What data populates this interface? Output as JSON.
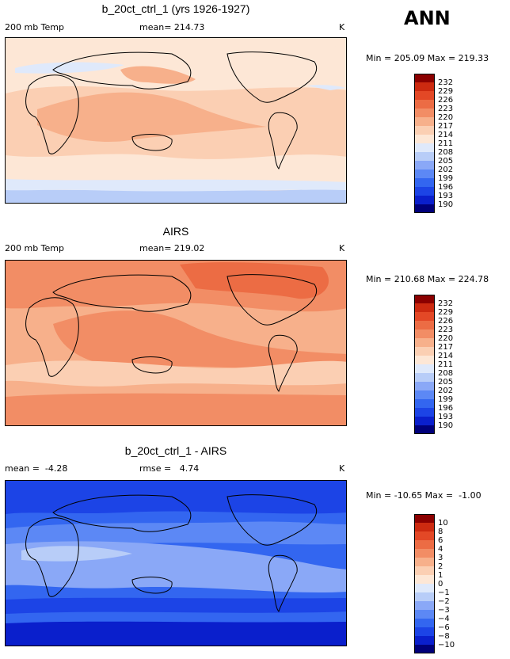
{
  "season": "ANN",
  "colors": {
    "temp": [
      "#00007a",
      "#0a1fcc",
      "#1c44e6",
      "#3366f0",
      "#5c88f5",
      "#8aa8f7",
      "#b8cdf8",
      "#dfe9fb",
      "#fde7d6",
      "#fbcfb3",
      "#f7b08b",
      "#f28d65",
      "#ec6c44",
      "#e34826",
      "#cc2a10",
      "#8b0000"
    ],
    "diff": [
      "#00007a",
      "#0a1fcc",
      "#1c44e6",
      "#3366f0",
      "#5c88f5",
      "#8aa8f7",
      "#b8cdf8",
      "#dfe9fb",
      "#fde7d6",
      "#fbcfb3",
      "#f7b08b",
      "#f28d65",
      "#ec6c44",
      "#e34826",
      "#cc2a10",
      "#8b0000"
    ]
  },
  "panels": [
    {
      "title": "b_20ct_ctrl_1 (yrs 1926-1927)",
      "left_label": "200 mb Temp",
      "center_label": "mean= 214.73",
      "unit": "K",
      "minmax": "Min = 205.09 Max = 219.33",
      "levels": [
        "232",
        "229",
        "226",
        "223",
        "220",
        "217",
        "214",
        "211",
        "208",
        "205",
        "202",
        "199",
        "196",
        "193",
        "190"
      ]
    },
    {
      "title": "AIRS",
      "left_label": "200 mb Temp",
      "center_label": "mean= 219.02",
      "unit": "K",
      "minmax": "Min = 210.68 Max = 224.78",
      "levels": [
        "232",
        "229",
        "226",
        "223",
        "220",
        "217",
        "214",
        "211",
        "208",
        "205",
        "202",
        "199",
        "196",
        "193",
        "190"
      ]
    },
    {
      "title": "b_20ct_ctrl_1 - AIRS",
      "left_label": "mean =  -4.28",
      "center_label": "rmse =   4.74",
      "unit": "K",
      "minmax": "Min = -10.65 Max =  -1.00",
      "levels": [
        "10",
        "8",
        "6",
        "4",
        "3",
        "2",
        "1",
        "0",
        "−1",
        "−2",
        "−3",
        "−4",
        "−6",
        "−8",
        "−10"
      ]
    }
  ],
  "chart_data": [
    {
      "type": "heatmap",
      "title": "b_20ct_ctrl_1 (yrs 1926-1927)",
      "variable": "200 mb Temp",
      "units": "K",
      "mean": 214.73,
      "min": 205.09,
      "max": 219.33,
      "contour_levels": [
        190,
        193,
        196,
        199,
        202,
        205,
        208,
        211,
        214,
        217,
        220,
        223,
        226,
        229,
        232
      ],
      "zonal_bands_K": {
        "south_polar": 207,
        "southern_midlat": 212,
        "tropics": 217,
        "northern_midlat": 213,
        "north_polar": 211
      }
    },
    {
      "type": "heatmap",
      "title": "AIRS",
      "variable": "200 mb Temp",
      "units": "K",
      "mean": 219.02,
      "min": 210.68,
      "max": 224.78,
      "contour_levels": [
        190,
        193,
        196,
        199,
        202,
        205,
        208,
        211,
        214,
        217,
        220,
        223,
        226,
        229,
        232
      ],
      "zonal_bands_K": {
        "south_polar": 217,
        "southern_midlat": 220,
        "tropics": 218,
        "northern_midlat": 221,
        "north_polar": 223
      }
    },
    {
      "type": "heatmap",
      "title": "b_20ct_ctrl_1 - AIRS",
      "units": "K",
      "mean": -4.28,
      "rmse": 4.74,
      "min": -10.65,
      "max": -1.0,
      "contour_levels": [
        -10,
        -8,
        -6,
        -4,
        -3,
        -2,
        -1,
        0,
        1,
        2,
        3,
        4,
        6,
        8,
        10
      ],
      "zonal_bands_K": {
        "south_polar": -8,
        "southern_midlat": -6,
        "tropics": -2,
        "northern_midlat": -5,
        "north_polar": -7
      }
    }
  ]
}
